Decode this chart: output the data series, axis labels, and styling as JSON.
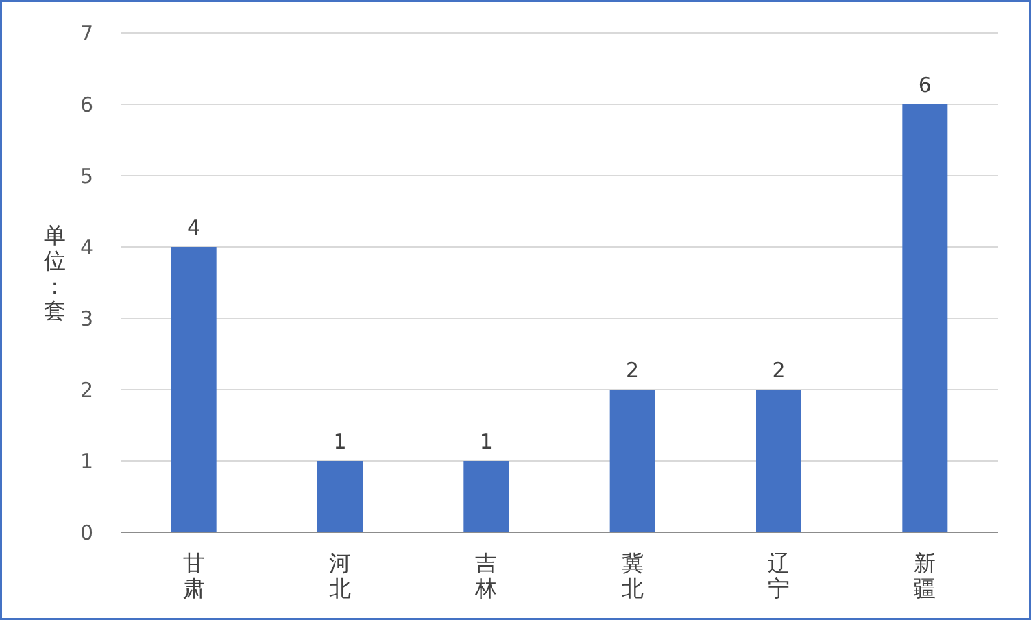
{
  "chart_data": {
    "type": "bar",
    "ylabel": "单位：套",
    "categories": [
      "甘肃",
      "河北",
      "吉林",
      "冀北",
      "辽宁",
      "新疆"
    ],
    "values": [
      4,
      1,
      1,
      2,
      2,
      6
    ],
    "color": "#4472c4",
    "ylim": [
      0,
      7
    ],
    "yticks": [
      0,
      1,
      2,
      3,
      4,
      5,
      6,
      7
    ],
    "grid": "y",
    "data_labels": true
  }
}
